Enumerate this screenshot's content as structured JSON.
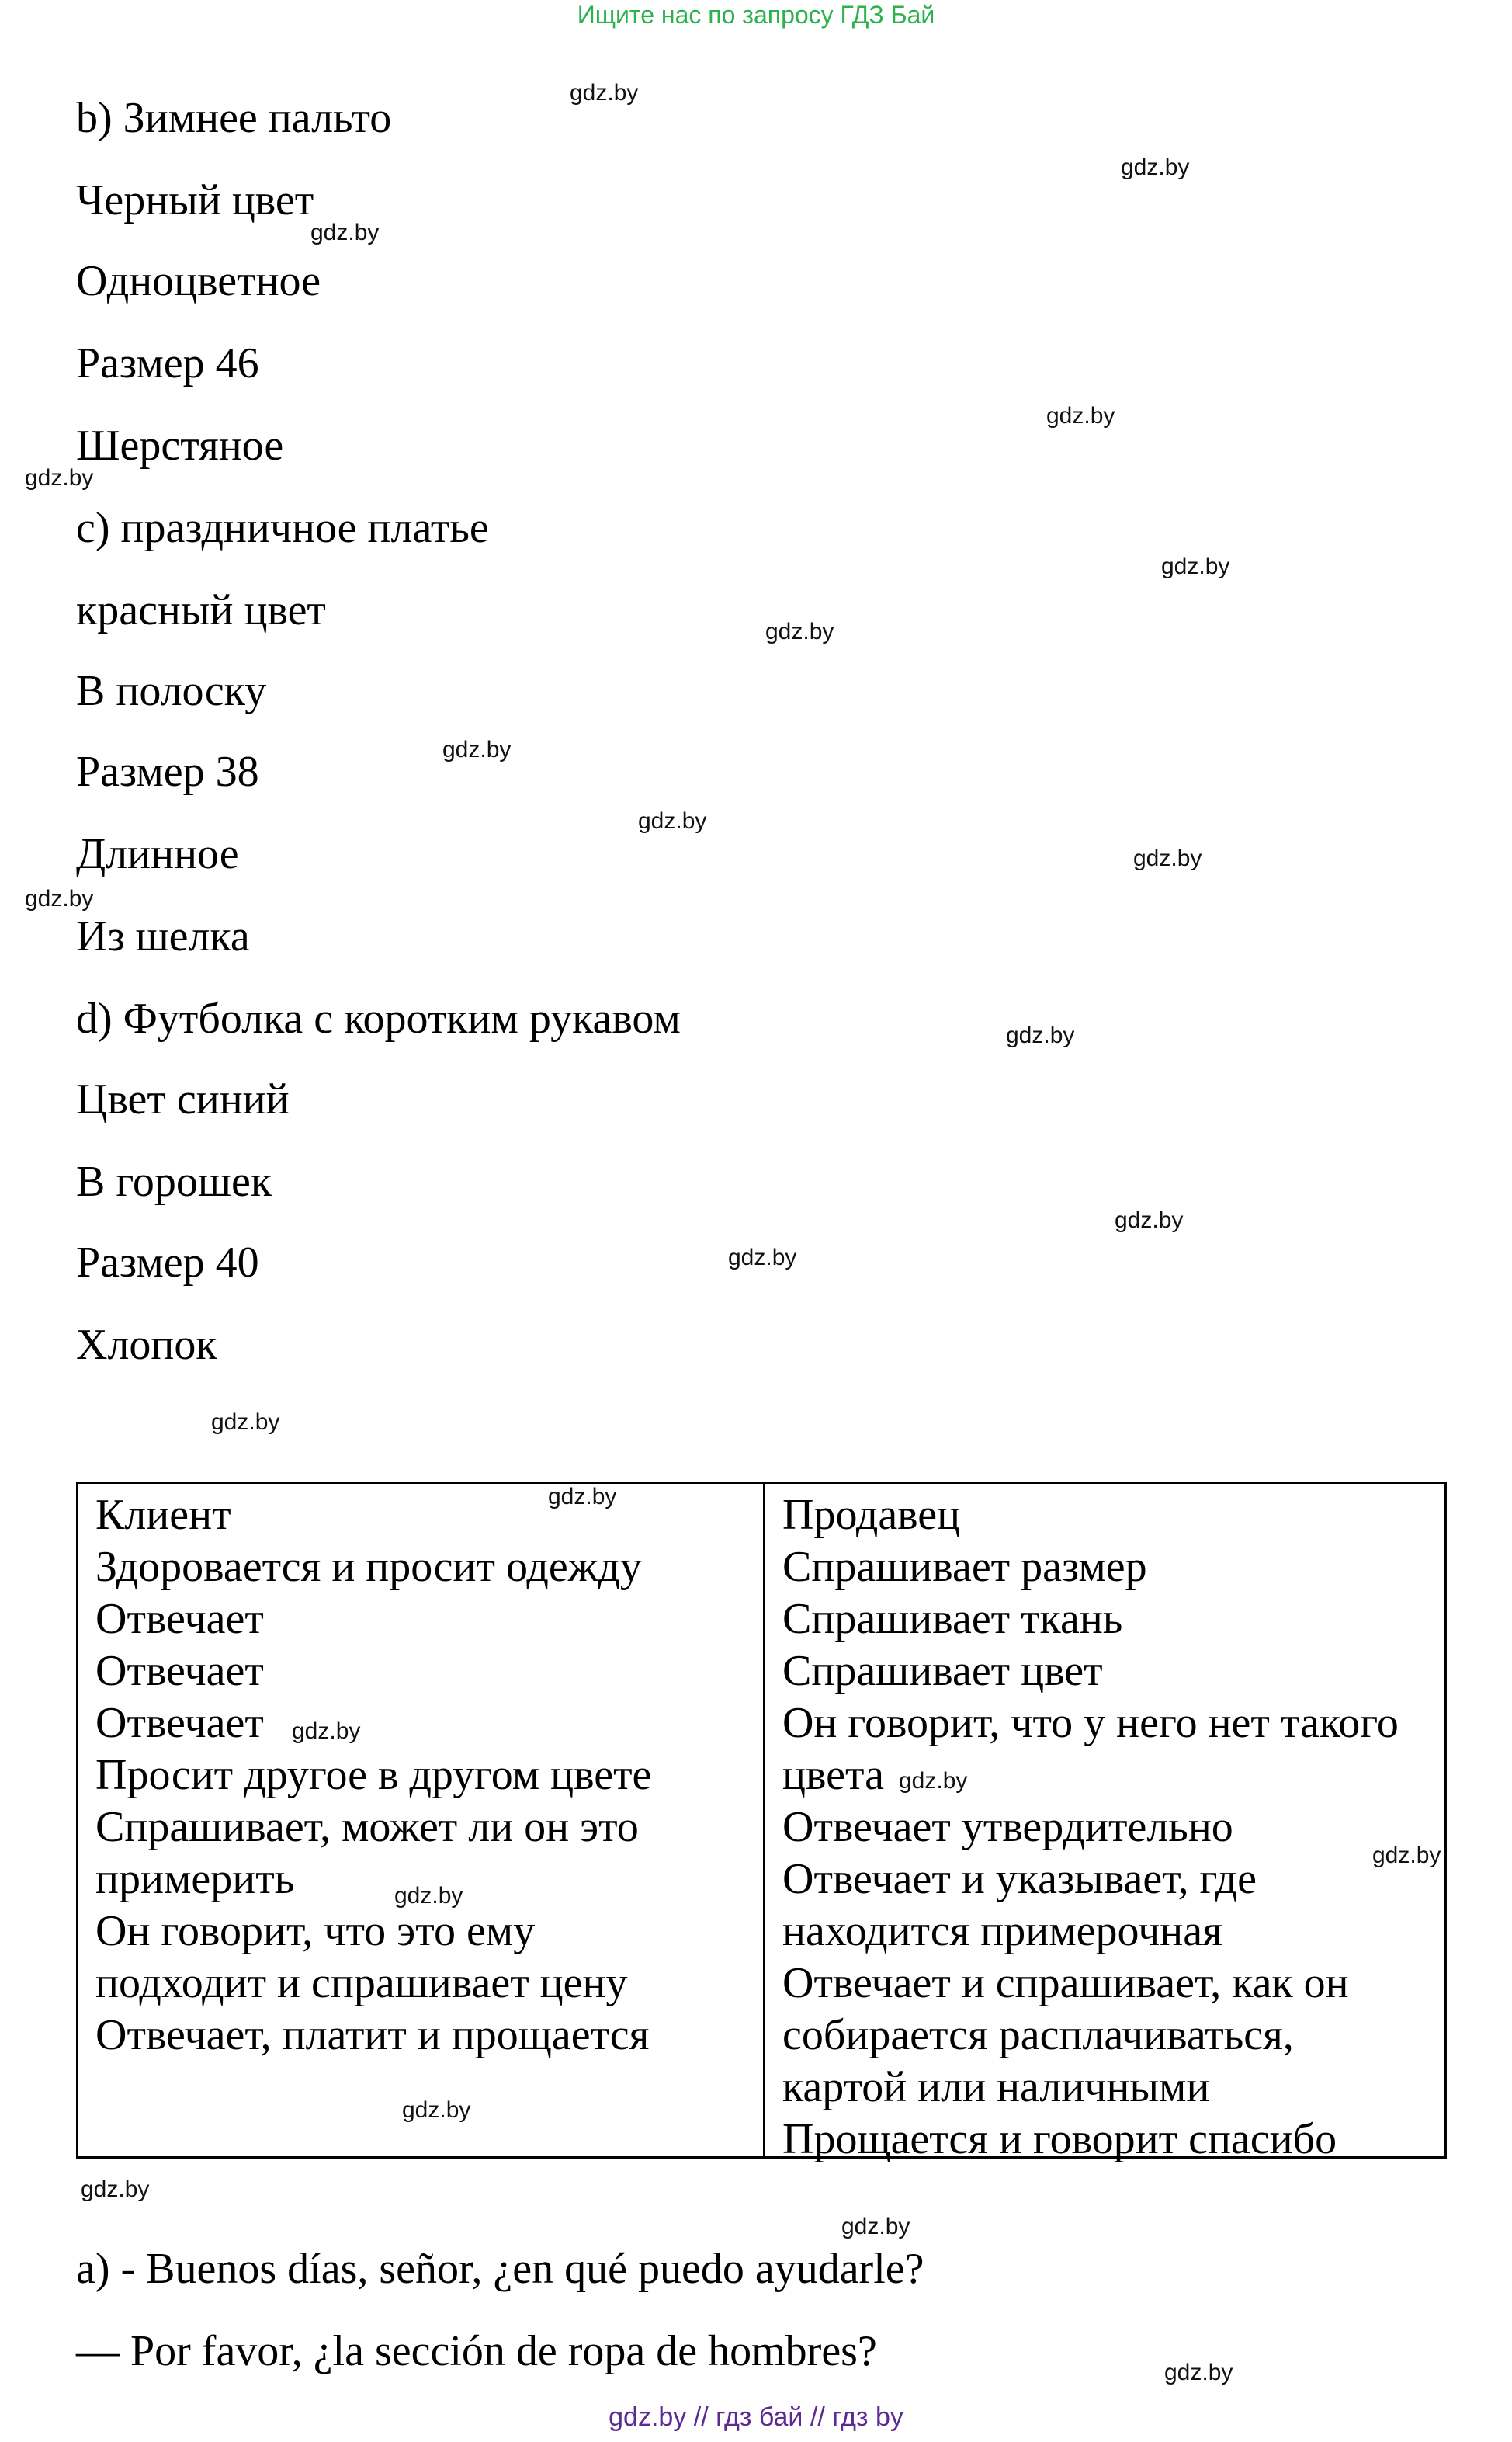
{
  "header": {
    "text": "Ищите нас по запросу ГДЗ Бай"
  },
  "lines": [
    "b) Зимнее пальто",
    "Черный цвет",
    "Одноцветное",
    "Размер 46",
    "Шерстяное",
    "c) праздничное платье",
    "красный цвет",
    "В полоску",
    "Размер 38",
    "Длинное",
    "Из шелка",
    "d) Футболка с коротким рукавом",
    "Цвет синий",
    "В горошек",
    "Размер 40",
    "Хлопок"
  ],
  "table": {
    "client": [
      "Клиент",
      "Здоровается и просит одежду",
      "Отвечает",
      "Отвечает",
      "Отвечает",
      "Просит другое в другом цвете",
      "Спрашивает, может ли он это",
      "примерить",
      "Он говорит, что это ему",
      "подходит и спрашивает цену",
      "Отвечает, платит и прощается"
    ],
    "seller": [
      "Продавец",
      "Спрашивает размер",
      "Спрашивает ткань",
      "Спрашивает цвет",
      "Он говорит, что у него нет такого",
      "цвета",
      "Отвечает утвердительно",
      "Отвечает и указывает, где",
      "находится примерочная",
      "Отвечает и спрашивает, как он",
      "собирается расплачиваться,",
      "картой или наличными",
      "Прощается и говорит спасибо"
    ]
  },
  "dialogue": [
    "a) - Buenos días, señor, ¿en qué puedo ayudarle?",
    "— Por favor, ¿la sección de ropa de hombres?"
  ],
  "watermark": "gdz.by",
  "footer": {
    "text": "gdz.by  //  гдз бай  //  гдз by"
  },
  "colors": {
    "header": "#2bb24c",
    "footer": "#5b2a92"
  }
}
